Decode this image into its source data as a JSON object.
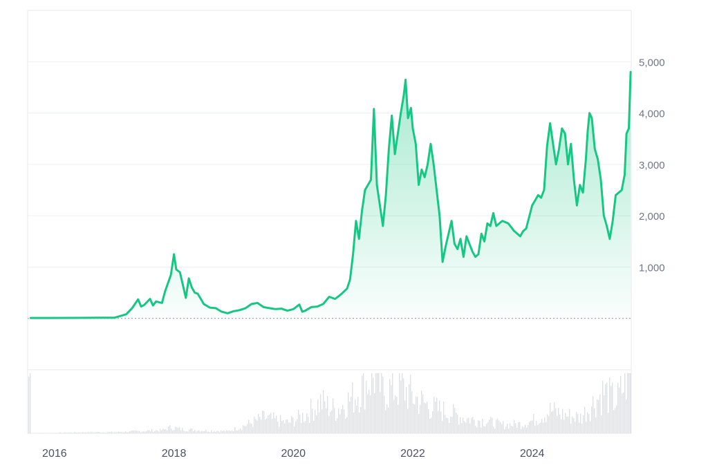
{
  "chart_data": {
    "type": "area",
    "title": "",
    "xlabel": "",
    "ylabel": "",
    "xlim": [
      2015.55,
      2025.66
    ],
    "ylim": [
      -1000,
      6000
    ],
    "yticks": [
      1000,
      2000,
      3000,
      4000,
      5000
    ],
    "ytick_labels": [
      "1,000",
      "2,000",
      "3,000",
      "4,000",
      "5,000"
    ],
    "xticks": [
      2016,
      2018,
      2020,
      2022,
      2024
    ],
    "xtick_labels": [
      "2016",
      "2018",
      "2020",
      "2022",
      "2024"
    ],
    "grid": true,
    "baseline": 0,
    "colors": {
      "line": "#16c784",
      "area_top": "#16c784",
      "volume": "#dde1e6",
      "grid": "#eceff3",
      "axis_text": "#6e7685"
    },
    "series": [
      {
        "x": [
          2015.6,
          2015.9,
          2016.3,
          2016.7,
          2017.0,
          2017.2,
          2017.3,
          2017.4,
          2017.45,
          2017.5,
          2017.6,
          2017.65,
          2017.7,
          2017.8,
          2017.85,
          2017.95,
          2018.0,
          2018.04,
          2018.1,
          2018.15,
          2018.2,
          2018.25,
          2018.3,
          2018.35,
          2018.4,
          2018.5,
          2018.6,
          2018.7,
          2018.8,
          2018.9,
          2019.0,
          2019.1,
          2019.2,
          2019.3,
          2019.4,
          2019.5,
          2019.6,
          2019.7,
          2019.8,
          2019.9,
          2020.0,
          2020.1,
          2020.15,
          2020.2,
          2020.3,
          2020.4,
          2020.5,
          2020.6,
          2020.7,
          2020.8,
          2020.9,
          2020.95,
          2021.0,
          2021.05,
          2021.1,
          2021.15,
          2021.2,
          2021.3,
          2021.35,
          2021.4,
          2021.45,
          2021.5,
          2021.55,
          2021.6,
          2021.65,
          2021.7,
          2021.75,
          2021.8,
          2021.85,
          2021.88,
          2021.92,
          2021.97,
          2022.0,
          2022.05,
          2022.1,
          2022.15,
          2022.2,
          2022.25,
          2022.3,
          2022.35,
          2022.4,
          2022.45,
          2022.5,
          2022.55,
          2022.6,
          2022.65,
          2022.7,
          2022.75,
          2022.8,
          2022.85,
          2022.9,
          2023.0,
          2023.05,
          2023.1,
          2023.15,
          2023.2,
          2023.25,
          2023.3,
          2023.35,
          2023.4,
          2023.5,
          2023.6,
          2023.7,
          2023.75,
          2023.8,
          2023.85,
          2023.9,
          2024.0,
          2024.05,
          2024.1,
          2024.15,
          2024.2,
          2024.25,
          2024.3,
          2024.4,
          2024.45,
          2024.5,
          2024.55,
          2024.6,
          2024.65,
          2024.7,
          2024.75,
          2024.8,
          2024.85,
          2024.9,
          2024.93,
          2024.96,
          2025.0,
          2025.05,
          2025.1,
          2025.15,
          2025.2,
          2025.25,
          2025.3,
          2025.35,
          2025.4,
          2025.45,
          2025.5,
          2025.55,
          2025.58,
          2025.62,
          2025.65
        ],
        "values": [
          8,
          8,
          10,
          12,
          12,
          80,
          200,
          370,
          230,
          260,
          380,
          250,
          330,
          300,
          520,
          850,
          1250,
          950,
          900,
          650,
          400,
          780,
          600,
          500,
          480,
          280,
          210,
          200,
          130,
          100,
          140,
          160,
          200,
          280,
          300,
          220,
          200,
          180,
          190,
          150,
          180,
          270,
          130,
          150,
          220,
          230,
          280,
          420,
          380,
          470,
          580,
          760,
          1250,
          1900,
          1550,
          2100,
          2500,
          2700,
          4080,
          2600,
          2200,
          1800,
          2400,
          3300,
          3950,
          3200,
          3600,
          4000,
          4350,
          4650,
          3900,
          4100,
          3700,
          3400,
          2600,
          2900,
          2750,
          3000,
          3400,
          3000,
          2500,
          2000,
          1100,
          1400,
          1650,
          1900,
          1450,
          1350,
          1550,
          1200,
          1600,
          1300,
          1200,
          1250,
          1650,
          1500,
          1850,
          1800,
          2050,
          1800,
          1900,
          1850,
          1700,
          1650,
          1600,
          1700,
          1750,
          2200,
          2300,
          2400,
          2350,
          2500,
          3350,
          3800,
          3000,
          3300,
          3700,
          3600,
          3000,
          3400,
          2700,
          2200,
          2600,
          2450,
          3100,
          3650,
          4000,
          3900,
          3300,
          3100,
          2700,
          2000,
          1800,
          1550,
          1900,
          2400,
          2450,
          2500,
          2800,
          3600,
          3700,
          4800
        ]
      }
    ],
    "volume": {
      "x": [
        2015.6,
        2016.5,
        2017.0,
        2017.4,
        2017.8,
        2017.95,
        2018.1,
        2018.4,
        2018.9,
        2019.2,
        2019.5,
        2019.9,
        2020.2,
        2020.45,
        2020.7,
        2021.0,
        2021.2,
        2021.35,
        2021.5,
        2021.8,
        2022.0,
        2022.3,
        2022.6,
        2022.9,
        2023.2,
        2023.5,
        2023.8,
        2024.0,
        2024.3,
        2024.5,
        2024.8,
        2025.0,
        2025.2,
        2025.4,
        2025.6
      ],
      "values": [
        0,
        1,
        1,
        2,
        3,
        6,
        4,
        3,
        2,
        8,
        15,
        10,
        18,
        30,
        22,
        35,
        48,
        55,
        40,
        45,
        35,
        25,
        20,
        14,
        12,
        8,
        9,
        12,
        22,
        18,
        15,
        28,
        40,
        30,
        55
      ]
    }
  }
}
